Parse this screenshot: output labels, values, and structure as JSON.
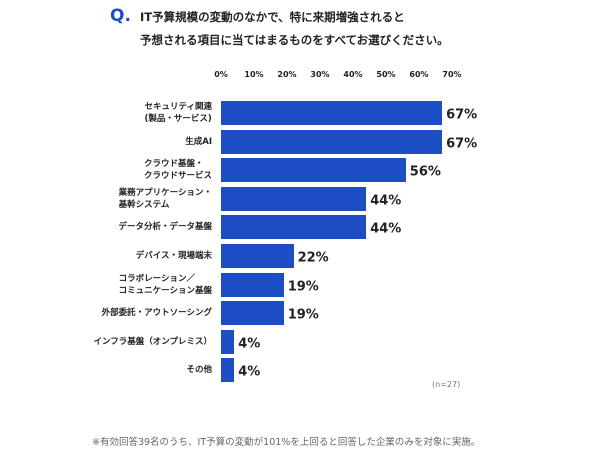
{
  "chart_data": {
    "type": "bar",
    "orientation": "horizontal",
    "question_mark": "Q.",
    "title": "IT予算規模の変動のなかで、特に来期増強されると\n予想される項目に当てはまるものをすべてお選びください。",
    "categories": [
      "セキュリティ関連\n(製品・サービス)",
      "生成AI",
      "クラウド基盤・\nクラウドサービス",
      "業務アプリケーション・\n基幹システム",
      "データ分析・データ基盤",
      "デバイス・現場端末",
      "コラボレーション／\nコミュニケーション基盤",
      "外部委託・アウトソーシング",
      "インフラ基盤（オンプレミス）",
      "その他"
    ],
    "values": [
      67,
      67,
      56,
      44,
      44,
      22,
      19,
      19,
      4,
      4
    ],
    "value_labels": [
      "67%",
      "67%",
      "56%",
      "44%",
      "44%",
      "22%",
      "19%",
      "19%",
      "4%",
      "4%"
    ],
    "color": "#1c4dc5",
    "xlim": [
      0,
      70
    ],
    "xticks": [
      {
        "value": 0,
        "label": "0%"
      },
      {
        "value": 10,
        "label": "10%"
      },
      {
        "value": 20,
        "label": "20%"
      },
      {
        "value": 30,
        "label": "30%"
      },
      {
        "value": 40,
        "label": "40%"
      },
      {
        "value": 50,
        "label": "50%"
      },
      {
        "value": 60,
        "label": "60%"
      },
      {
        "value": 70,
        "label": "70%"
      }
    ],
    "grid": false,
    "sample_note": "(n=27)",
    "footnote": "※有効回答39名のうち、IT予算の変動が101%を上回ると回答した企業のみを対象に実施。"
  }
}
